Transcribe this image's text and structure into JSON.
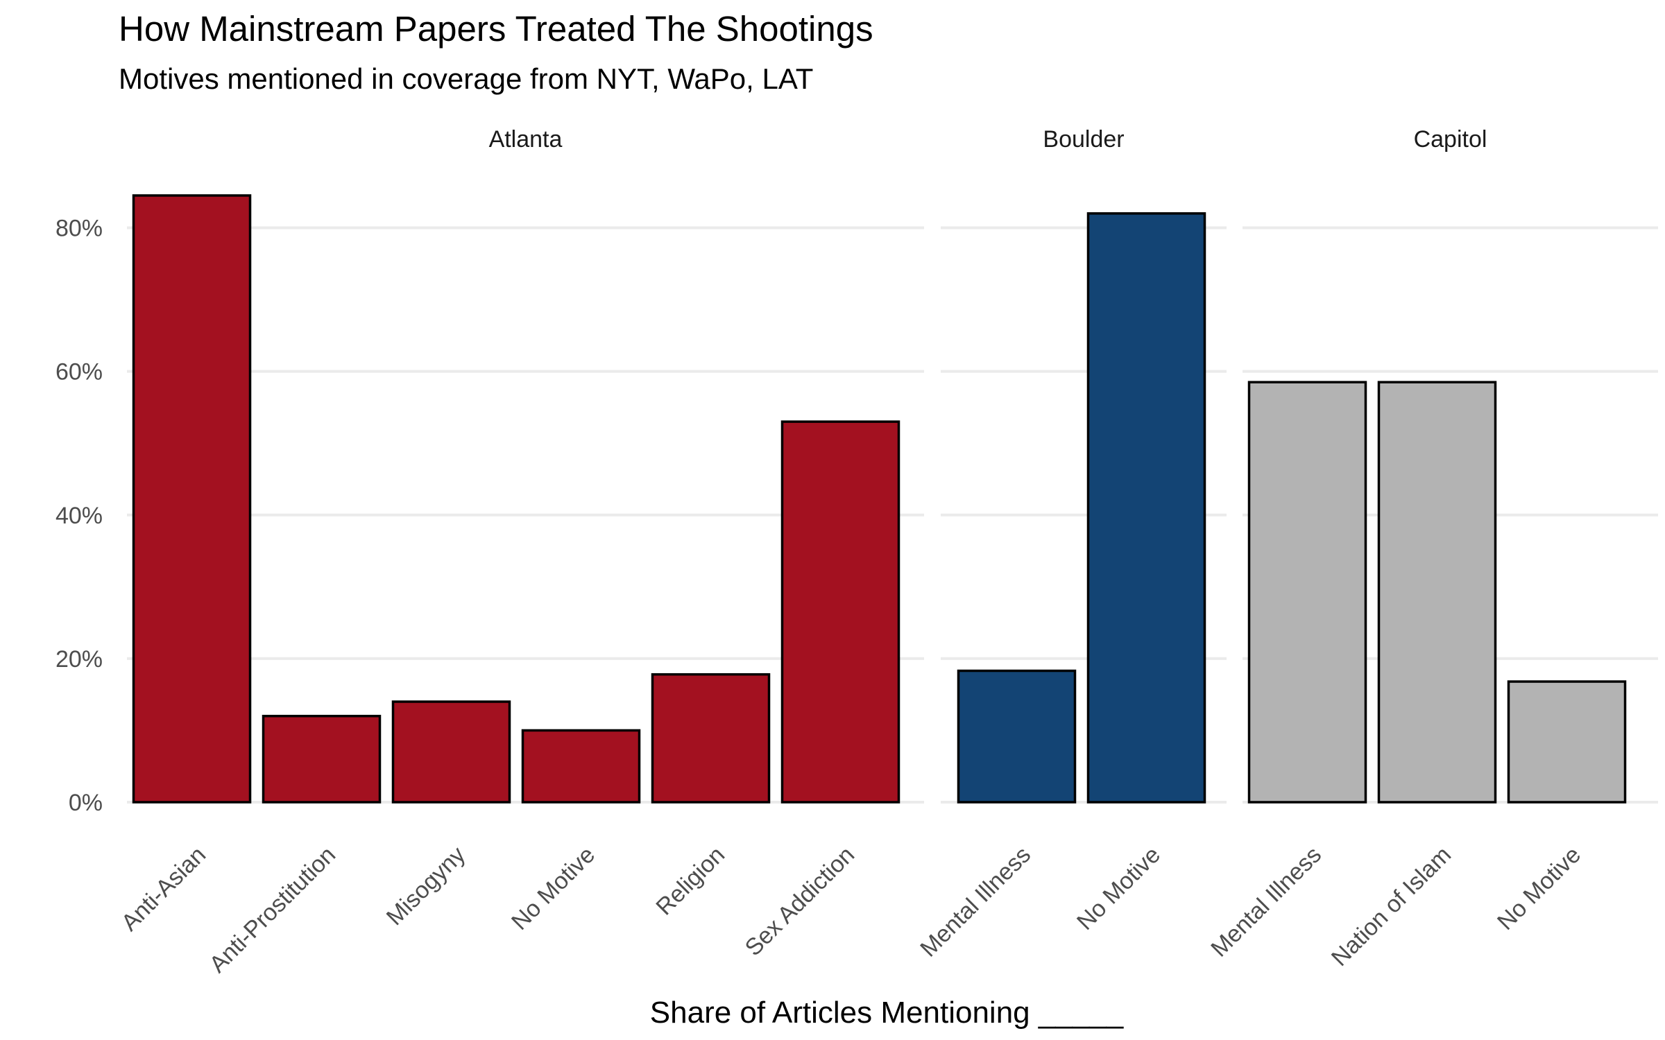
{
  "title": "How Mainstream Papers Treated The Shootings",
  "subtitle": "Motives mentioned in coverage from NYT, WaPo, LAT",
  "chart_data": {
    "type": "bar",
    "title": "How Mainstream Papers Treated The Shootings",
    "subtitle": "Motives mentioned in coverage from NYT, WaPo, LAT",
    "xlabel": "Share of Articles Mentioning _____",
    "ylabel": "",
    "ylim": [
      0,
      0.9
    ],
    "y_ticks": [
      0,
      0.2,
      0.4,
      0.6,
      0.8
    ],
    "y_tick_labels": [
      "0%",
      "20%",
      "40%",
      "60%",
      "80%"
    ],
    "grid": "horizontal",
    "legend": "none",
    "facets": [
      {
        "name": "Atlanta",
        "color": "#a31120",
        "categories": [
          "Anti-Asian",
          "Anti-Prostitution",
          "Misogyny",
          "No Motive",
          "Religion",
          "Sex Addiction"
        ],
        "values": [
          0.845,
          0.12,
          0.14,
          0.1,
          0.178,
          0.53
        ]
      },
      {
        "name": "Boulder",
        "color": "#134474",
        "categories": [
          "Mental Illness",
          "No Motive"
        ],
        "values": [
          0.183,
          0.82
        ]
      },
      {
        "name": "Capitol",
        "color": "#b3b3b3",
        "categories": [
          "Mental Illness",
          "Nation of Islam",
          "No Motive"
        ],
        "values": [
          0.585,
          0.585,
          0.168
        ]
      }
    ]
  }
}
